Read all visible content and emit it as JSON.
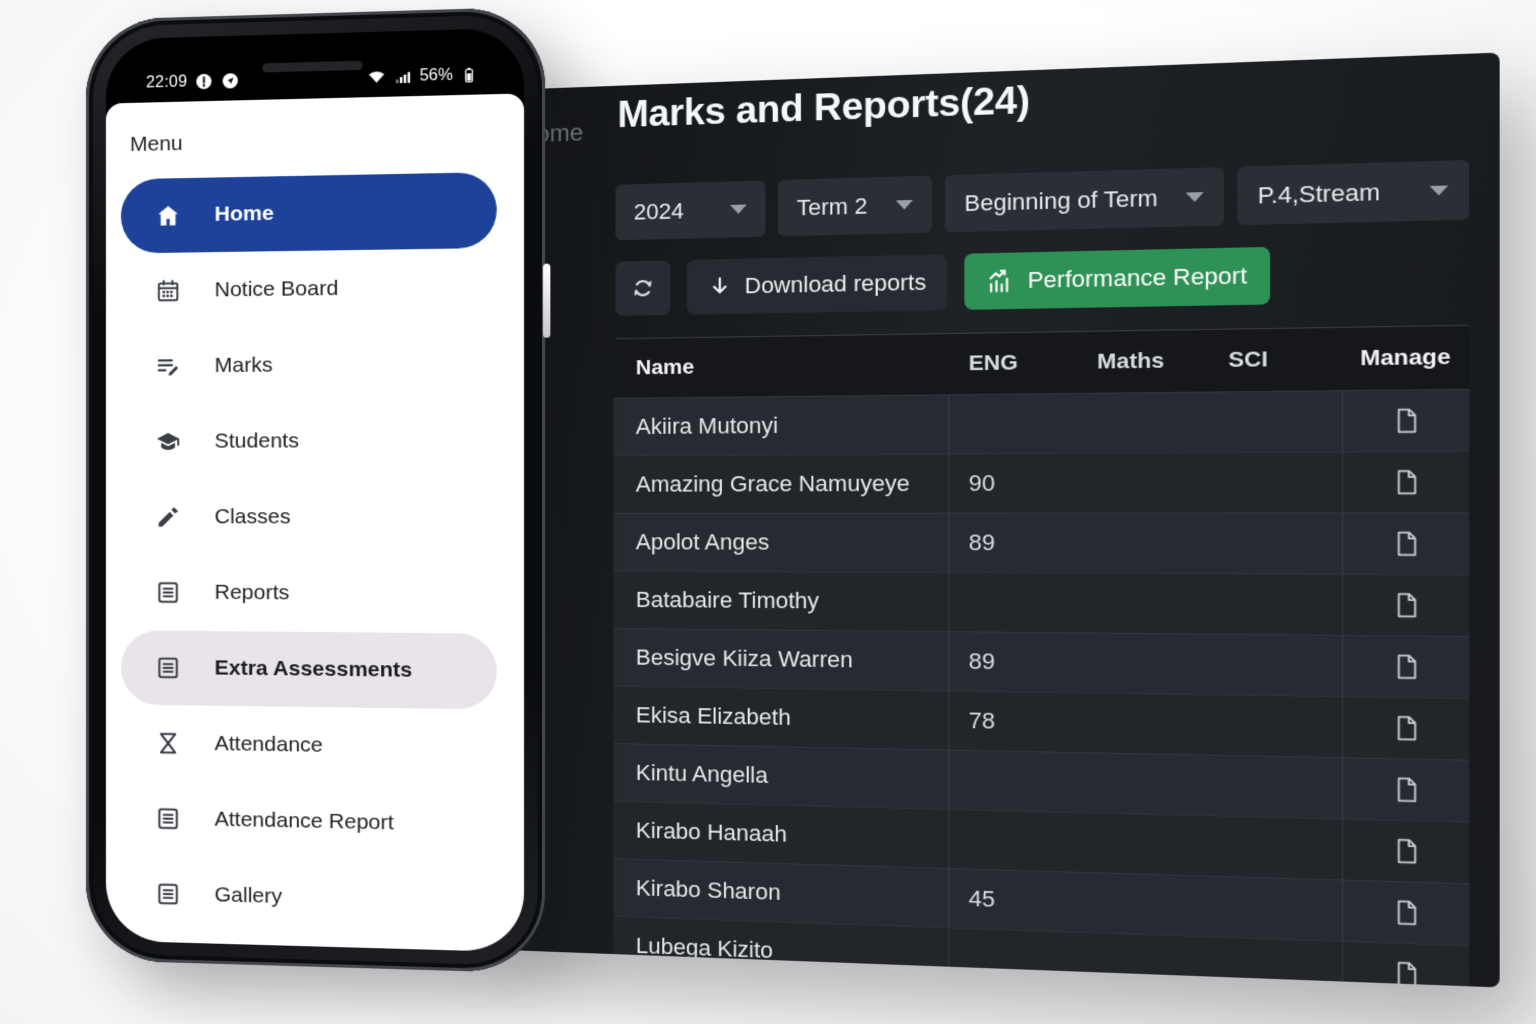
{
  "phone": {
    "status_bar": {
      "time": "22:09",
      "battery": "56%"
    },
    "menu": {
      "title": "Menu",
      "items": [
        {
          "label": "Home",
          "icon": "home",
          "state": "active"
        },
        {
          "label": "Notice Board",
          "icon": "calendar"
        },
        {
          "label": "Marks",
          "icon": "marks"
        },
        {
          "label": "Students",
          "icon": "graduation-cap"
        },
        {
          "label": "Classes",
          "icon": "pencil"
        },
        {
          "label": "Reports",
          "icon": "article"
        },
        {
          "label": "Extra Assessments",
          "icon": "article",
          "state": "highlighted"
        },
        {
          "label": "Attendance",
          "icon": "hourglass"
        },
        {
          "label": "Attendance Report",
          "icon": "article"
        },
        {
          "label": "Gallery",
          "icon": "article"
        }
      ]
    }
  },
  "dashboard": {
    "breadcrumb": "Home",
    "title": "Marks and Reports(24)",
    "filters": [
      {
        "name": "year",
        "value": "2024"
      },
      {
        "name": "term",
        "value": "Term 2"
      },
      {
        "name": "period",
        "value": "Beginning of Term"
      },
      {
        "name": "class_stream",
        "value": "P.4,Stream"
      }
    ],
    "actions": {
      "download_label": "Download reports",
      "performance_label": "Performance Report"
    },
    "table": {
      "columns": [
        "Name",
        "ENG",
        "Maths",
        "SCI",
        "Manage"
      ],
      "rows": [
        {
          "name": "Akiira Mutonyi",
          "eng": "",
          "maths": "",
          "sci": ""
        },
        {
          "name": "Amazing Grace Namuyeye",
          "eng": "90",
          "maths": "",
          "sci": ""
        },
        {
          "name": "Apolot Anges",
          "eng": "89",
          "maths": "",
          "sci": ""
        },
        {
          "name": "Batabaire Timothy",
          "eng": "",
          "maths": "",
          "sci": ""
        },
        {
          "name": "Besigve Kiiza Warren",
          "eng": "89",
          "maths": "",
          "sci": ""
        },
        {
          "name": "Ekisa Elizabeth",
          "eng": "78",
          "maths": "",
          "sci": ""
        },
        {
          "name": "Kintu Angella",
          "eng": "",
          "maths": "",
          "sci": ""
        },
        {
          "name": "Kirabo Hanaah",
          "eng": "",
          "maths": "",
          "sci": ""
        },
        {
          "name": "Kirabo Sharon",
          "eng": "45",
          "maths": "",
          "sci": ""
        },
        {
          "name": "Lubega Kizito",
          "eng": "",
          "maths": "",
          "sci": ""
        }
      ]
    }
  },
  "colors": {
    "accent_blue": "#1e429a",
    "menu_highlight": "#e9e4e9",
    "action_green": "#2e9155",
    "panel_bg": "#1a1d21"
  }
}
